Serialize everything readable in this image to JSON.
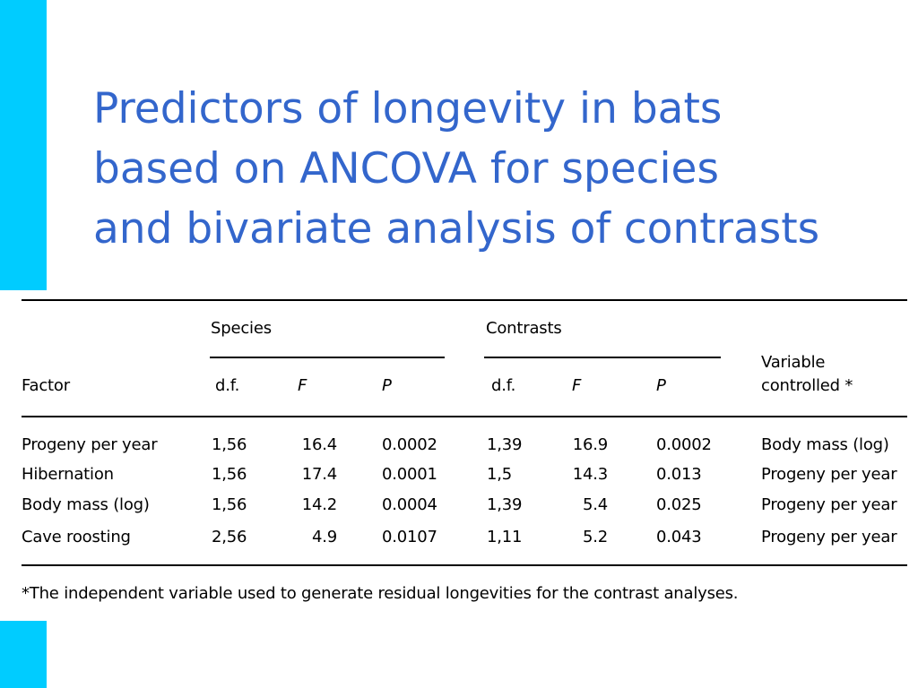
{
  "title_lines": [
    "Predictors of longevity in bats",
    "based on ANCOVA for species",
    "and bivariate analysis of contrasts"
  ],
  "table": {
    "group_headers": {
      "species": "Species",
      "contrasts": "Contrasts"
    },
    "columns": {
      "factor": "Factor",
      "species_df": "d.f.",
      "species_f": "F",
      "species_p": "P",
      "contrasts_df": "d.f.",
      "contrasts_f": "F",
      "contrasts_p": "P",
      "variable_controlled_line1": "Variable",
      "variable_controlled_line2": "controlled *"
    },
    "rows": [
      {
        "factor": "Progeny per year",
        "species_df": "1,56",
        "species_f": "16.4",
        "species_p": "0.0002",
        "contrasts_df": "1,39",
        "contrasts_f": "16.9",
        "contrasts_p": "0.0002",
        "controlled": "Body mass (log)"
      },
      {
        "factor": "Hibernation",
        "species_df": "1,56",
        "species_f": "17.4",
        "species_p": "0.0001",
        "contrasts_df": "1,5",
        "contrasts_f": "14.3",
        "contrasts_p": "0.013",
        "controlled": "Progeny per year"
      },
      {
        "factor": "Body mass (log)",
        "species_df": "1,56",
        "species_f": "14.2",
        "species_p": "0.0004",
        "contrasts_df": "1,39",
        "contrasts_f": "5.4",
        "contrasts_p": "0.025",
        "controlled": "Progeny per year"
      },
      {
        "factor": "Cave roosting",
        "species_df": "2,56",
        "species_f": "4.9",
        "species_p": "0.0107",
        "contrasts_df": "1,11",
        "contrasts_f": "5.2",
        "contrasts_p": "0.043",
        "controlled": "Progeny per year"
      }
    ],
    "footnote": "*The independent variable used to generate residual longevities for the contrast analyses."
  },
  "colors": {
    "title": "#3366cc",
    "accent": "#00ccff",
    "rules": "#000000"
  }
}
